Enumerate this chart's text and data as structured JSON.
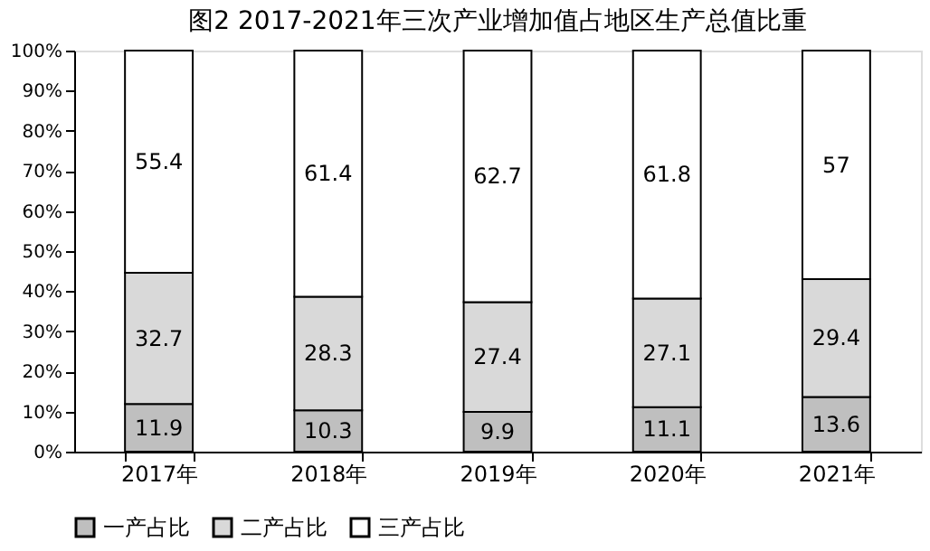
{
  "chart_data": {
    "type": "bar",
    "title": "图2     2017-2021年三次产业增加值占地区生产总值比重",
    "categories": [
      "2017年",
      "2018年",
      "2019年",
      "2020年",
      "2021年"
    ],
    "series": [
      {
        "name": "一产占比",
        "color": "#bfbfbf",
        "values": [
          11.9,
          10.3,
          9.9,
          11.1,
          13.6
        ]
      },
      {
        "name": "二产占比",
        "color": "#d9d9d9",
        "values": [
          32.7,
          28.3,
          27.4,
          27.1,
          29.4
        ]
      },
      {
        "name": "三产占比",
        "color": "#ffffff",
        "values": [
          55.4,
          61.4,
          62.7,
          61.8,
          57
        ]
      }
    ],
    "stacked": true,
    "data_labels": true,
    "ylim": [
      0,
      100
    ],
    "yticks": [
      {
        "value": 0,
        "label": "0%"
      },
      {
        "value": 10,
        "label": "10%"
      },
      {
        "value": 20,
        "label": "20%"
      },
      {
        "value": 30,
        "label": "30%"
      },
      {
        "value": 40,
        "label": "40%"
      },
      {
        "value": 50,
        "label": "50%"
      },
      {
        "value": 60,
        "label": "60%"
      },
      {
        "value": 70,
        "label": "70%"
      },
      {
        "value": 80,
        "label": "80%"
      },
      {
        "value": 90,
        "label": "90%"
      },
      {
        "value": 100,
        "label": "100%"
      }
    ],
    "grid": false,
    "legend": "bottom"
  }
}
